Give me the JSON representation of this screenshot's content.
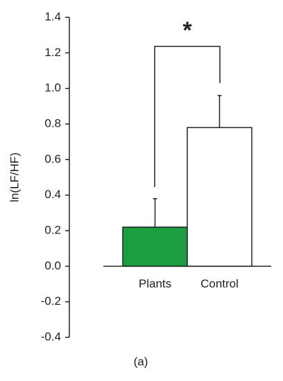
{
  "chart_data": {
    "type": "bar",
    "ylabel": "ln(LF/HF)",
    "xlabel": "(a)",
    "annotation": "*",
    "categories": [
      "Plants",
      "Control"
    ],
    "values": [
      0.22,
      0.78
    ],
    "errors": [
      0.16,
      0.18
    ],
    "colors": [
      "#1a9e3f",
      "#ffffff"
    ],
    "ylim": [
      -0.4,
      1.4
    ],
    "yticks": [
      -0.4,
      -0.2,
      {
        "value": 0,
        "label": "0.0"
      },
      0.2,
      0.4,
      0.6,
      0.8,
      {
        "value": 1,
        "label": "1.0"
      },
      1.2,
      1.4
    ]
  }
}
